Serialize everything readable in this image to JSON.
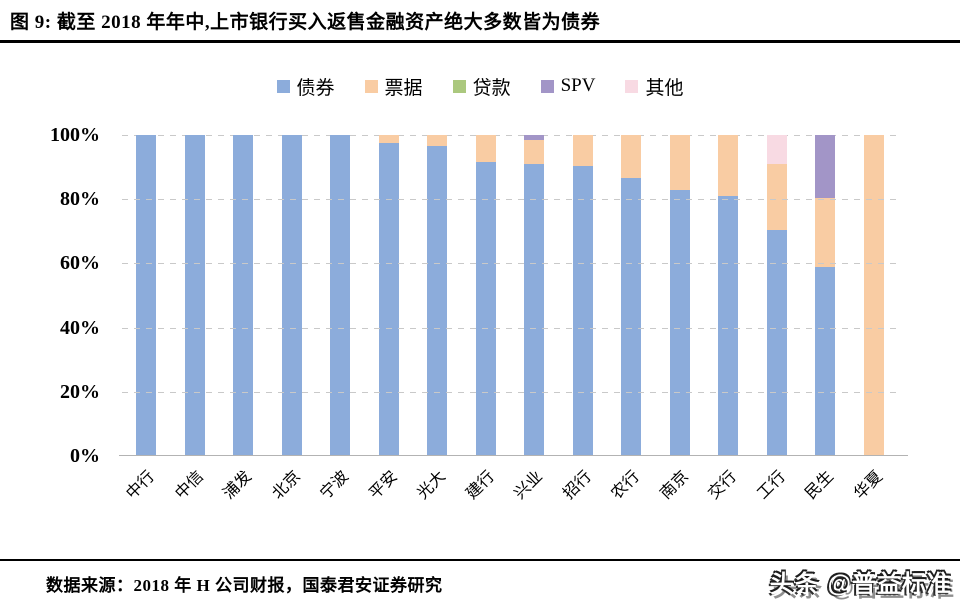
{
  "title": "图 9: 截至 2018 年年中,上市银行买入返售金融资产绝大多数皆为债券",
  "legend": {
    "items": [
      {
        "label": "债券",
        "color": "#8CACDB"
      },
      {
        "label": "票据",
        "color": "#F9CCA3"
      },
      {
        "label": "贷款",
        "color": "#ABC87E"
      },
      {
        "label": "SPV",
        "color": "#A295C7"
      },
      {
        "label": "其他",
        "color": "#F8DAE3"
      }
    ]
  },
  "chart_data": {
    "type": "bar",
    "stacked": true,
    "title": "截至2018年年中,上市银行买入返售金融资产绝大多数皆为债券",
    "xlabel": "",
    "ylabel": "",
    "ylim": [
      0,
      100
    ],
    "yticks": [
      "0%",
      "20%",
      "40%",
      "60%",
      "80%",
      "100%"
    ],
    "grid": "horizontal-dashed",
    "legend_position": "top",
    "categories": [
      "中行",
      "中信",
      "浦发",
      "北京",
      "宁波",
      "平安",
      "光大",
      "建行",
      "兴业",
      "招行",
      "农行",
      "南京",
      "交行",
      "工行",
      "民生",
      "华夏"
    ],
    "series": [
      {
        "name": "债券",
        "color": "#8CACDB",
        "values": [
          100,
          100,
          100,
          100,
          100,
          97.5,
          96.5,
          91.5,
          91,
          90.5,
          86.5,
          83,
          81,
          70.5,
          59,
          0
        ]
      },
      {
        "name": "票据",
        "color": "#F9CCA3",
        "values": [
          0,
          0,
          0,
          0,
          0,
          2.5,
          3.5,
          8.5,
          7.5,
          9.5,
          13.5,
          17,
          19,
          20.5,
          21.5,
          100
        ]
      },
      {
        "name": "贷款",
        "color": "#ABC87E",
        "values": [
          0,
          0,
          0,
          0,
          0,
          0,
          0,
          0,
          0,
          0,
          0,
          0,
          0,
          0,
          0,
          0
        ]
      },
      {
        "name": "SPV",
        "color": "#A295C7",
        "values": [
          0,
          0,
          0,
          0,
          0,
          0,
          0,
          0,
          1.5,
          0,
          0,
          0,
          0,
          0,
          19.5,
          0
        ]
      },
      {
        "name": "其他",
        "color": "#F8DAE3",
        "values": [
          0,
          0,
          0,
          0,
          0,
          0,
          0,
          0,
          0,
          0,
          0,
          0,
          0,
          9,
          0,
          0
        ]
      }
    ]
  },
  "footer": {
    "source": "数据来源：2018 年 H 公司财报，国泰君安证券研究"
  },
  "watermark": "头条 @普益标准"
}
